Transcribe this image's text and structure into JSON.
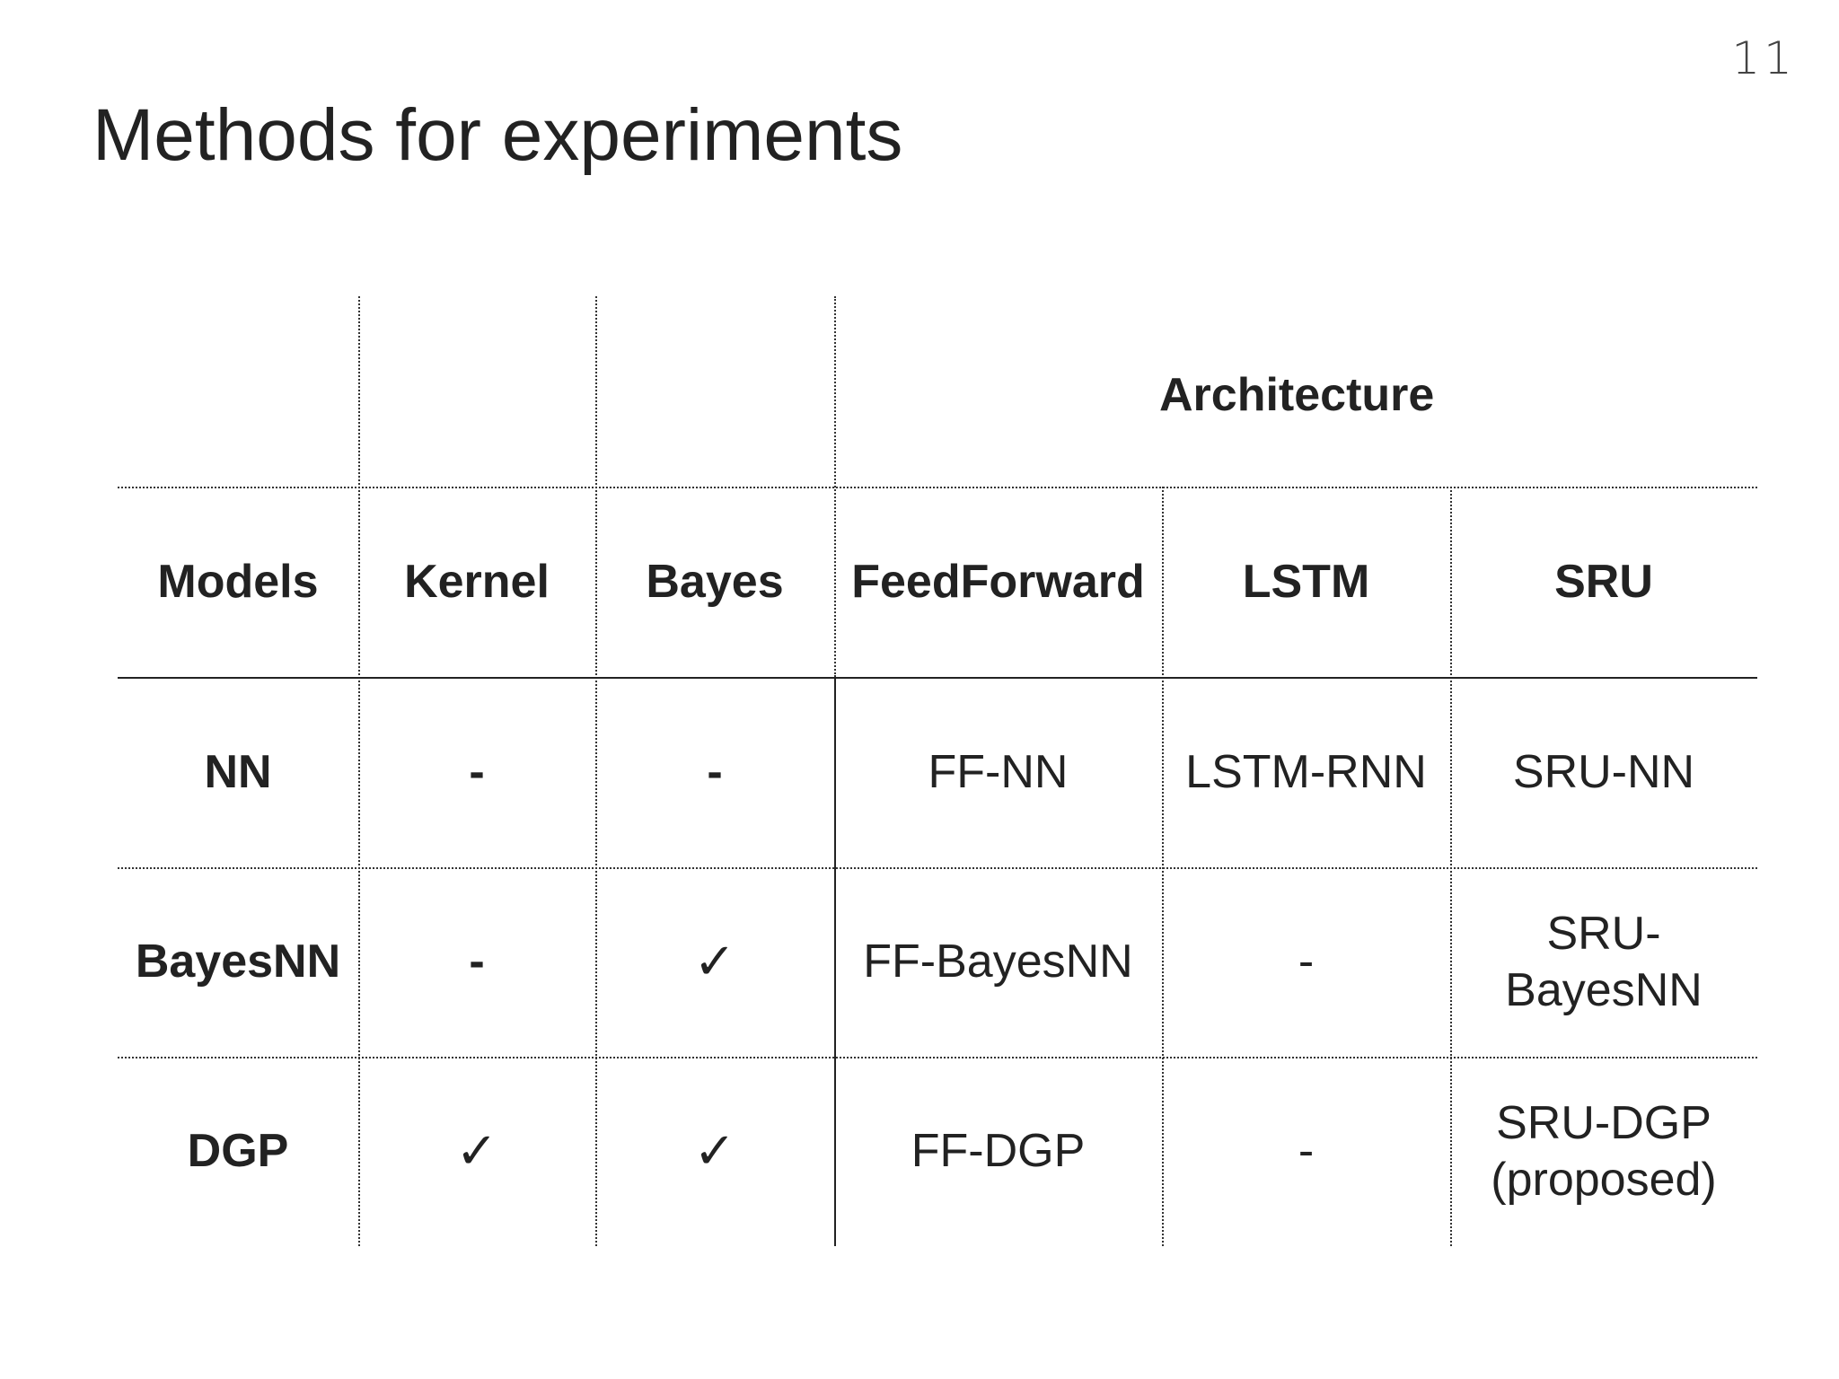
{
  "slide": {
    "number": "11",
    "title": "Methods for experiments"
  },
  "table": {
    "group_header": "Architecture",
    "columns": [
      "Models",
      "Kernel",
      "Bayes",
      "FeedForward",
      "LSTM",
      "SRU"
    ],
    "rows": [
      {
        "model": "NN",
        "kernel": "-",
        "bayes": "-",
        "feedforward": "FF-NN",
        "lstm": "LSTM-RNN",
        "sru_line1": "SRU-NN",
        "sru_line2": ""
      },
      {
        "model": "BayesNN",
        "kernel": "-",
        "bayes": "✓",
        "feedforward": "FF-BayesNN",
        "lstm": "-",
        "sru_line1": "SRU-",
        "sru_line2": "BayesNN"
      },
      {
        "model": "DGP",
        "kernel": "✓",
        "bayes": "✓",
        "feedforward": "FF-DGP",
        "lstm": "-",
        "sru_line1": "SRU-DGP",
        "sru_line2": "(proposed)"
      }
    ]
  }
}
